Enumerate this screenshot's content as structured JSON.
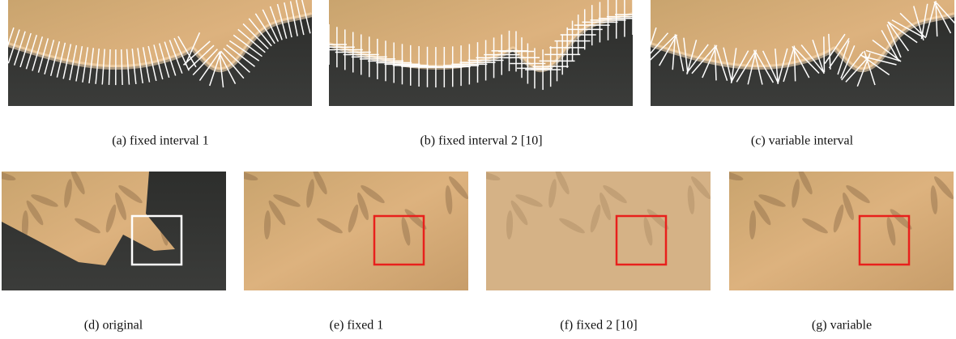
{
  "panels": [
    {
      "caption": "(a) fixed interval 1"
    },
    {
      "caption": "(b) fixed interval 2 [10]"
    },
    {
      "caption": "(c) variable interval"
    },
    {
      "caption": "(d) original"
    },
    {
      "caption": "(e) fixed 1"
    },
    {
      "caption": "(f) fixed 2 [10]"
    },
    {
      "caption": "(g) variable"
    }
  ]
}
